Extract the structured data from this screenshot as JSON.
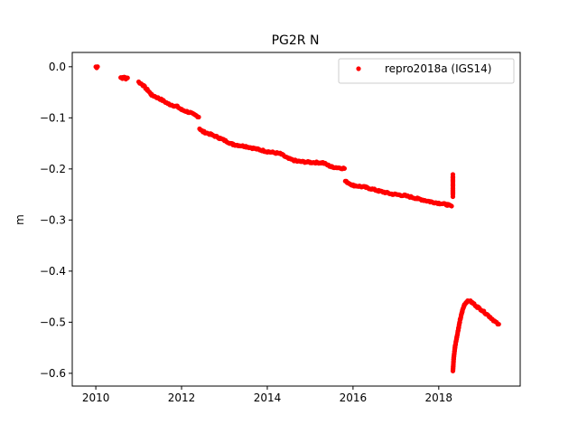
{
  "chart_data": {
    "type": "scatter",
    "title": "PG2R N",
    "xlabel": "",
    "ylabel": "m",
    "xlim": [
      2009.45,
      2019.9
    ],
    "ylim": [
      -0.625,
      0.028
    ],
    "xticks": [
      2010,
      2012,
      2014,
      2016,
      2018
    ],
    "xtick_labels": [
      "2010",
      "2012",
      "2014",
      "2016",
      "2018"
    ],
    "yticks": [
      0.0,
      -0.1,
      -0.2,
      -0.3,
      -0.4,
      -0.5,
      -0.6
    ],
    "ytick_labels": [
      "0.0",
      "−0.1",
      "−0.2",
      "−0.3",
      "−0.4",
      "−0.5",
      "−0.6"
    ],
    "grid": false,
    "legend_position": "top-right",
    "series": [
      {
        "name": "repro2018a (IGS14)",
        "color": "#ff0000",
        "marker": "dot",
        "segments": [
          {
            "x": [
              2010.0,
              2010.02,
              2010.04
            ],
            "y": [
              0.0,
              -0.001,
              0.001
            ]
          },
          {
            "x": [
              2010.58,
              2010.62,
              2010.66,
              2010.7,
              2010.74
            ],
            "y": [
              -0.021,
              -0.022,
              -0.02,
              -0.023,
              -0.021
            ]
          },
          {
            "x": [
              2011.0,
              2011.1,
              2011.2,
              2011.3,
              2011.5,
              2011.7,
              2011.9,
              2012.0,
              2012.2,
              2012.4
            ],
            "y": [
              -0.03,
              -0.036,
              -0.045,
              -0.055,
              -0.063,
              -0.073,
              -0.078,
              -0.084,
              -0.09,
              -0.098
            ]
          },
          {
            "x": [
              2012.42,
              2012.5,
              2012.7,
              2012.9,
              2013.2,
              2013.5,
              2013.8,
              2014.0,
              2014.3,
              2014.5,
              2014.7,
              2015.0,
              2015.3,
              2015.5,
              2015.8
            ],
            "y": [
              -0.121,
              -0.127,
              -0.133,
              -0.14,
              -0.152,
              -0.156,
              -0.162,
              -0.166,
              -0.17,
              -0.18,
              -0.185,
              -0.187,
              -0.188,
              -0.196,
              -0.199
            ]
          },
          {
            "x": [
              2015.82,
              2016.0,
              2016.3,
              2016.6,
              2016.9,
              2017.2,
              2017.5,
              2017.8,
              2018.0,
              2018.2,
              2018.3
            ],
            "y": [
              -0.224,
              -0.232,
              -0.236,
              -0.243,
              -0.249,
              -0.252,
              -0.258,
              -0.264,
              -0.267,
              -0.27,
              -0.273
            ]
          },
          {
            "x": [
              2018.33,
              2018.33,
              2018.33,
              2018.33
            ],
            "y": [
              -0.212,
              -0.222,
              -0.242,
              -0.253
            ]
          },
          {
            "x": [
              2018.33,
              2018.35,
              2018.38,
              2018.42,
              2018.46,
              2018.5,
              2018.55,
              2018.6,
              2018.65,
              2018.72,
              2018.8,
              2018.9,
              2019.0,
              2019.1,
              2019.2,
              2019.3,
              2019.4
            ],
            "y": [
              -0.595,
              -0.57,
              -0.548,
              -0.53,
              -0.512,
              -0.495,
              -0.478,
              -0.465,
              -0.46,
              -0.458,
              -0.463,
              -0.47,
              -0.476,
              -0.483,
              -0.49,
              -0.498,
              -0.505
            ]
          }
        ]
      }
    ]
  }
}
